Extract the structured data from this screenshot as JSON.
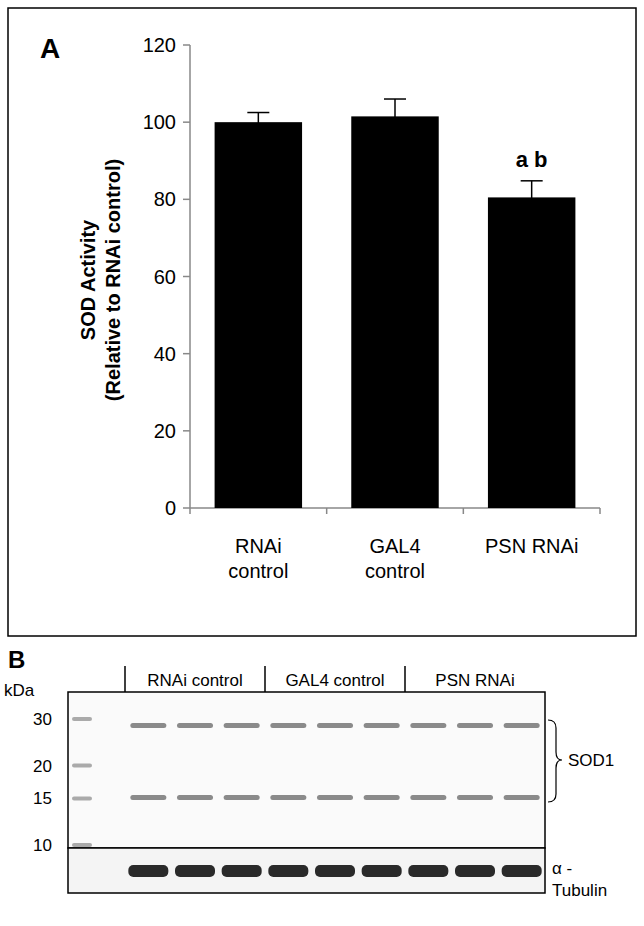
{
  "chart_data": {
    "type": "bar",
    "title": "A",
    "ylabel": "SOD Activity\n(Relative to RNAi control)",
    "categories": [
      "RNAi\ncontrol",
      "GAL4\ncontrol",
      "PSN RNAi"
    ],
    "values": [
      100,
      101.5,
      80.5
    ],
    "errors": [
      2.5,
      4.5,
      4.3
    ],
    "color": "#000000",
    "ylim": [
      0,
      120
    ],
    "yticks": [
      0,
      20,
      40,
      60,
      80,
      100,
      120
    ],
    "grid": false,
    "annotations": [
      {
        "label": "a b",
        "category": "PSN RNAi"
      }
    ]
  },
  "panel_b": {
    "panel_label": "B",
    "unit": "kDa",
    "markers": [
      30,
      20,
      15,
      10
    ],
    "lanes": [
      "RNAi control",
      "GAL4 control",
      "PSN RNAi"
    ],
    "bands": [
      "SOD1",
      "α -\nTubulin"
    ]
  }
}
